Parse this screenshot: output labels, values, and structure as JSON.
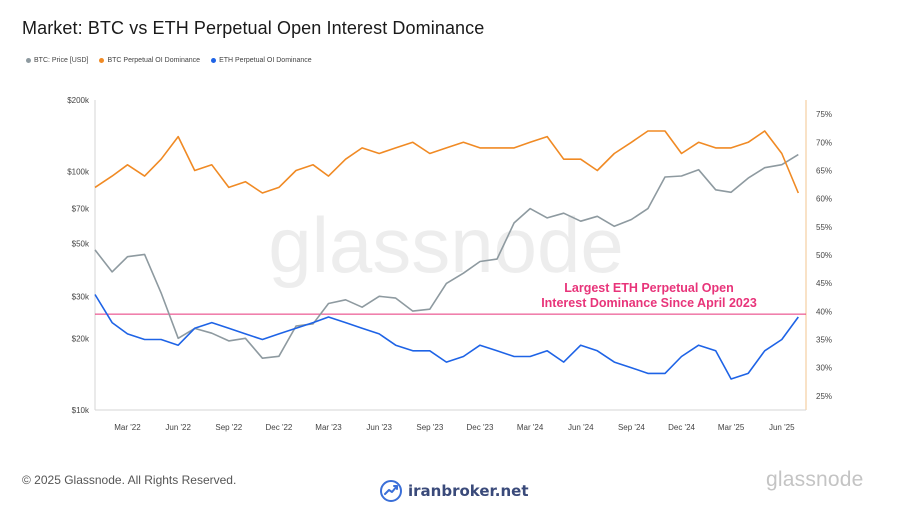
{
  "title": "Market: BTC vs ETH Perpetual Open Interest Dominance",
  "legend": [
    {
      "label": "BTC: Price [USD]",
      "color": "#8e9aa0"
    },
    {
      "label": "BTC Perpetual OI Dominance",
      "color": "#f08a24"
    },
    {
      "label": "ETH Perpetual OI Dominance",
      "color": "#1e63e6"
    }
  ],
  "watermark": "glassnode",
  "annotation": {
    "line1": "Largest ETH Perpetual Open",
    "line2": "Interest Dominance Since April 2023",
    "color": "#e8347a",
    "value_pct": 39.5
  },
  "footer": {
    "copyright": "© 2025 Glassnode. All Rights Reserved.",
    "brand": "glassnode",
    "broker": "iranbroker.net"
  },
  "chart_data": {
    "type": "line",
    "x": [
      "2022-01-01",
      "2022-02-01",
      "2022-03-01",
      "2022-04-01",
      "2022-05-01",
      "2022-06-01",
      "2022-07-01",
      "2022-08-01",
      "2022-09-01",
      "2022-10-01",
      "2022-11-01",
      "2022-12-01",
      "2023-01-01",
      "2023-02-01",
      "2023-03-01",
      "2023-04-01",
      "2023-05-01",
      "2023-06-01",
      "2023-07-01",
      "2023-08-01",
      "2023-09-01",
      "2023-10-01",
      "2023-11-01",
      "2023-12-01",
      "2024-01-01",
      "2024-02-01",
      "2024-03-01",
      "2024-04-01",
      "2024-05-01",
      "2024-06-01",
      "2024-07-01",
      "2024-08-01",
      "2024-09-01",
      "2024-10-01",
      "2024-11-01",
      "2024-12-01",
      "2025-01-01",
      "2025-02-01",
      "2025-03-01",
      "2025-04-01",
      "2025-05-01",
      "2025-06-01",
      "2025-07-01"
    ],
    "x_tick_labels": [
      "Mar '22",
      "Jun '22",
      "Sep '22",
      "Dec '22",
      "Mar '23",
      "Jun '23",
      "Sep '23",
      "Dec '23",
      "Mar '24",
      "Jun '24",
      "Sep '24",
      "Dec '24",
      "Mar '25",
      "Jun '25"
    ],
    "x_tick_dates": [
      "2022-03-01",
      "2022-06-01",
      "2022-09-01",
      "2022-12-01",
      "2023-03-01",
      "2023-06-01",
      "2023-09-01",
      "2023-12-01",
      "2024-03-01",
      "2024-06-01",
      "2024-09-01",
      "2024-12-01",
      "2025-03-01",
      "2025-06-01"
    ],
    "x_range": [
      "2022-01-01",
      "2025-07-15"
    ],
    "y_left": {
      "scale": "log",
      "range": [
        10000,
        200000
      ],
      "ticks": [
        10000,
        20000,
        30000,
        50000,
        70000,
        100000,
        200000
      ],
      "tick_labels": [
        "$10k",
        "$20k",
        "$30k",
        "$50k",
        "$70k",
        "$100k",
        "$200k"
      ]
    },
    "y_right": {
      "scale": "linear",
      "range": [
        22.5,
        77.5
      ],
      "ticks": [
        25,
        30,
        35,
        40,
        45,
        50,
        55,
        60,
        65,
        70,
        75
      ],
      "tick_labels": [
        "25%",
        "30%",
        "35%",
        "40%",
        "45%",
        "50%",
        "55%",
        "60%",
        "65%",
        "70%",
        "75%"
      ]
    },
    "series": [
      {
        "name": "BTC: Price [USD]",
        "axis": "left",
        "color": "#8e9aa0",
        "values": [
          47000,
          38000,
          44000,
          45000,
          31000,
          20000,
          22000,
          21000,
          19500,
          20000,
          16500,
          16800,
          22500,
          23000,
          28000,
          29000,
          27000,
          30000,
          29500,
          26000,
          26500,
          34000,
          37500,
          42000,
          43000,
          61000,
          70000,
          64000,
          67000,
          62000,
          65000,
          59000,
          63000,
          70000,
          95000,
          96000,
          102000,
          84000,
          82000,
          94000,
          104000,
          107000,
          118000
        ]
      },
      {
        "name": "BTC Perpetual OI Dominance",
        "axis": "right",
        "color": "#f08a24",
        "values": [
          62,
          64,
          66,
          64,
          67,
          71,
          65,
          66,
          62,
          63,
          61,
          62,
          65,
          66,
          64,
          67,
          69,
          68,
          69,
          70,
          68,
          69,
          70,
          69,
          69,
          69,
          70,
          71,
          67,
          67,
          65,
          68,
          70,
          72,
          72,
          68,
          70,
          69,
          69,
          70,
          72,
          68,
          61
        ]
      },
      {
        "name": "ETH Perpetual OI Dominance",
        "axis": "right",
        "color": "#1e63e6",
        "values": [
          43,
          38,
          36,
          35,
          35,
          34,
          37,
          38,
          37,
          36,
          35,
          36,
          37,
          38,
          39,
          38,
          37,
          36,
          34,
          33,
          33,
          31,
          32,
          34,
          33,
          32,
          32,
          33,
          31,
          34,
          33,
          31,
          30,
          29,
          29,
          32,
          34,
          33,
          28,
          29,
          33,
          35,
          39
        ]
      }
    ],
    "grid": false,
    "legend_position": "top-left"
  }
}
